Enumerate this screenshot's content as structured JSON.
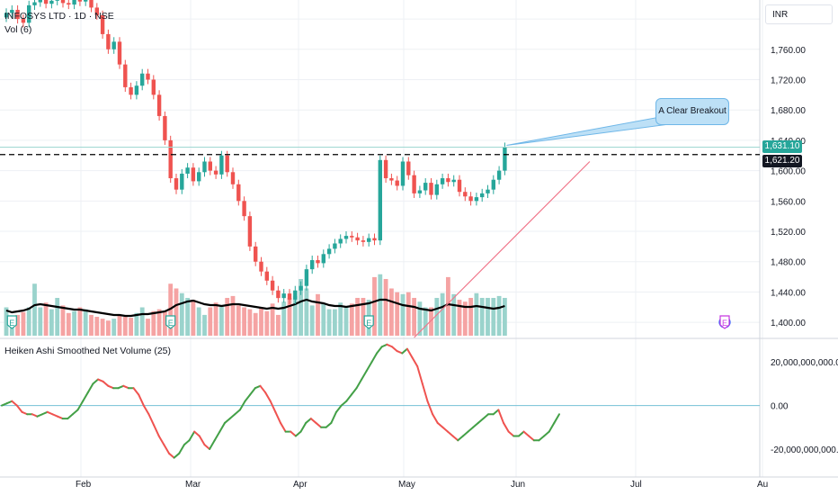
{
  "header": {
    "symbol_title": "INFOSYS LTD · 1D · NSE",
    "vol_label": "Vol (6)",
    "currency": "INR"
  },
  "annotation": {
    "breakout_label": "A Clear Breakout"
  },
  "price_tags": {
    "last_price": "1,631.10",
    "dashed_level": "1,621.20"
  },
  "indicator": {
    "title": "Heiken Ashi Smoothed Net Volume (25)"
  },
  "colors": {
    "up": "#26a69a",
    "down": "#ef5350",
    "vol_up": "#9ad3cc",
    "vol_down": "#f5a3a3",
    "osc_up": "#43a047",
    "osc_down": "#ef5350",
    "trendline": "#f0768a",
    "zero_line": "#74c0d6"
  },
  "chart_data": [
    {
      "type": "candlestick",
      "title": "INFOSYS LTD · 1D · NSE",
      "y_ticks": [
        "1,800.00",
        "1,760.00",
        "1,720.00",
        "1,680.00",
        "1,640.00",
        "1,600.00",
        "1,560.00",
        "1,520.00",
        "1,480.00",
        "1,440.00",
        "1,400.00"
      ],
      "ylim": [
        1380,
        1825
      ],
      "x_ticks": [
        "Feb",
        "Mar",
        "Apr",
        "May",
        "Jun",
        "Jul",
        "Au"
      ],
      "closes": [
        1808,
        1812,
        1800,
        1795,
        1818,
        1822,
        1826,
        1820,
        1824,
        1830,
        1821,
        1819,
        1825,
        1823,
        1826,
        1815,
        1805,
        1780,
        1760,
        1770,
        1740,
        1710,
        1700,
        1712,
        1728,
        1720,
        1700,
        1672,
        1640,
        1590,
        1575,
        1596,
        1604,
        1586,
        1598,
        1612,
        1600,
        1595,
        1620,
        1598,
        1582,
        1560,
        1540,
        1500,
        1480,
        1467,
        1455,
        1442,
        1432,
        1438,
        1430,
        1442,
        1448,
        1470,
        1482,
        1478,
        1490,
        1497,
        1504,
        1510,
        1514,
        1512,
        1508,
        1506,
        1511,
        1508,
        1614,
        1590,
        1587,
        1580,
        1612,
        1594,
        1570,
        1574,
        1584,
        1568,
        1582,
        1590,
        1585,
        1588,
        1572,
        1566,
        1560,
        1565,
        1570,
        1575,
        1588,
        1600,
        1631
      ],
      "extra_labels": [
        "1,631.10",
        "1,621.20"
      ],
      "dashed_level": 1621.2,
      "trendline": {
        "from": [
          72,
          1380
        ],
        "to": [
          103,
          1612
        ]
      },
      "event_markers": [
        {
          "index": 1,
          "label": "E"
        },
        {
          "index": 29,
          "label": "E"
        },
        {
          "index": 64,
          "label": "E"
        },
        {
          "index": 94,
          "label": "D"
        },
        {
          "index": 134,
          "label": "E"
        }
      ]
    },
    {
      "type": "bar",
      "title": "Vol (6)",
      "volumes": [
        30,
        18,
        22,
        25,
        30,
        55,
        30,
        35,
        28,
        40,
        32,
        24,
        26,
        30,
        28,
        22,
        20,
        18,
        16,
        18,
        22,
        20,
        19,
        24,
        30,
        18,
        26,
        28,
        26,
        55,
        50,
        45,
        40,
        38,
        30,
        22,
        30,
        35,
        32,
        40,
        42,
        32,
        30,
        28,
        24,
        30,
        26,
        34,
        22,
        36,
        40,
        42,
        60,
        50,
        32,
        44,
        34,
        28,
        28,
        35,
        30,
        34,
        40,
        40,
        38,
        62,
        65,
        60,
        50,
        46,
        44,
        46,
        40,
        36,
        30,
        30,
        40,
        45,
        62,
        44,
        38,
        36,
        40,
        45,
        40,
        40,
        40,
        42,
        40
      ],
      "avg_line": [
        28,
        26,
        27,
        28,
        30,
        34,
        35,
        34,
        33,
        32,
        31,
        30,
        29,
        29,
        28,
        27,
        26,
        25,
        24,
        23,
        23,
        22,
        22,
        23,
        24,
        24,
        25,
        26,
        27,
        30,
        34,
        36,
        38,
        39,
        37,
        35,
        34,
        34,
        33,
        34,
        35,
        35,
        34,
        33,
        32,
        31,
        30,
        31,
        30,
        31,
        33,
        35,
        38,
        40,
        38,
        37,
        36,
        34,
        33,
        33,
        32,
        33,
        34,
        35,
        36,
        38,
        40,
        40,
        38,
        36,
        34,
        33,
        32,
        30,
        29,
        28,
        30,
        32,
        35,
        34,
        33,
        32,
        32,
        33,
        32,
        31,
        30,
        31,
        33
      ]
    },
    {
      "type": "line",
      "title": "Heiken Ashi Smoothed Net Volume (25)",
      "y_ticks": [
        "20,000,000,000.00",
        "0.00",
        "-20,000,000,000.00"
      ],
      "ylim": [
        -32000000000,
        30000000000
      ],
      "values": [
        0,
        1,
        2,
        0,
        -3,
        -4,
        -4,
        -5,
        -4,
        -3,
        -4,
        -5,
        -6,
        -6,
        -4,
        -2,
        2,
        6,
        10,
        12,
        11,
        9,
        8,
        8,
        9,
        8,
        8,
        5,
        0,
        -4,
        -9,
        -14,
        -18,
        -22,
        -24,
        -22,
        -18,
        -16,
        -12,
        -14,
        -18,
        -20,
        -16,
        -12,
        -8,
        -6,
        -4,
        -2,
        2,
        5,
        8,
        9,
        6,
        2,
        -3,
        -8,
        -12,
        -12,
        -14,
        -12,
        -8,
        -6,
        -8,
        -10,
        -10,
        -8,
        -3,
        0,
        2,
        5,
        8,
        12,
        16,
        20,
        24,
        27,
        28,
        27,
        25,
        24,
        26,
        22,
        18,
        10,
        2,
        -4,
        -8,
        -10,
        -12,
        -14,
        -16,
        -14,
        -12,
        -10,
        -8,
        -6,
        -4,
        -4,
        -2,
        -8,
        -12,
        -14,
        -14,
        -12,
        -14,
        -16,
        -16,
        -14,
        -12,
        -8,
        -4
      ]
    }
  ]
}
